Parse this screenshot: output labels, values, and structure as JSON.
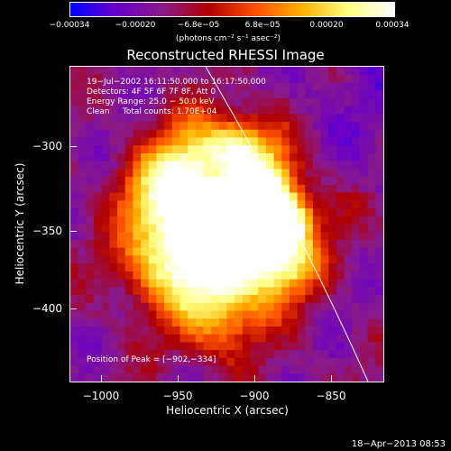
{
  "colorbar": {
    "ticks": [
      "−0.00034",
      "−0.00020",
      "−6.8e−05",
      "6.8e−05",
      "0.00020",
      "0.00034"
    ],
    "units": "(photons cm⁻² s⁻¹ asec⁻²)",
    "colormap": [
      "#0000ff",
      "#6a00c8",
      "#8a1a8a",
      "#b00000",
      "#ff5000",
      "#ffb000",
      "#ffff80",
      "#ffffff"
    ]
  },
  "title": "Reconstructed RHESSI Image",
  "info": {
    "line1": "19−Jul−2002 16:11:50.000 to 16:17:50.000",
    "line2": "Detectors: 4F 5F 6F 7F 8F, Att 0",
    "line3": "Energy Range: 25.0 − 50.0 keV",
    "line4": "Clean     Total counts: 1.70E+04",
    "peak": "Position of Peak = [−902,−334]"
  },
  "axes": {
    "xlabel": "Heliocentric X (arcsec)",
    "ylabel": "Heliocentric Y (arcsec)",
    "xticks": [
      "−1000",
      "−950",
      "−900",
      "−850"
    ],
    "yticks": [
      "−300",
      "−350",
      "−400"
    ]
  },
  "footer": {
    "date": "18−Apr−2013 08:53"
  },
  "chart_data": {
    "type": "heatmap",
    "title": "Reconstructed RHESSI Image",
    "xlabel": "Heliocentric X (arcsec)",
    "ylabel": "Heliocentric Y (arcsec)",
    "xlim": [
      -1012,
      -830
    ],
    "ylim": [
      -446,
      -263
    ],
    "peak": [
      -902,
      -334
    ],
    "limb_line": true
  }
}
